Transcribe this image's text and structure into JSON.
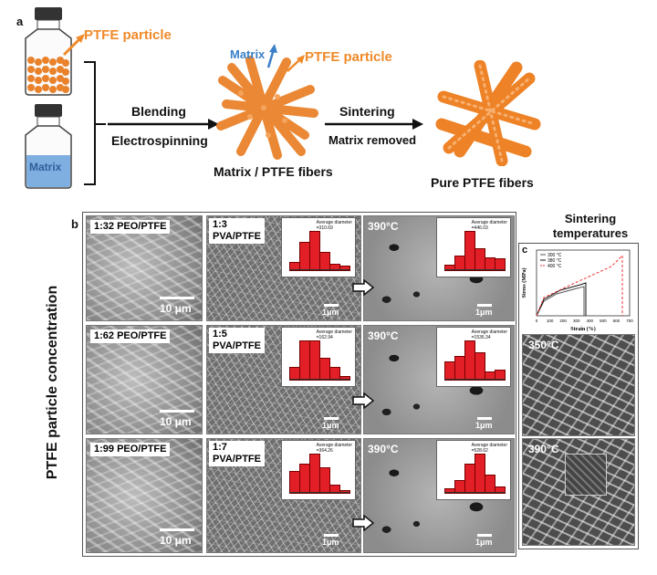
{
  "panel_a": {
    "label": "a",
    "ptfe_particle_left": "PTFE particle",
    "matrix_bottle": "Matrix",
    "blending": "Blending",
    "electrospinning": "Electrospinning",
    "matrix_arrow": "Matrix",
    "ptfe_particle_mid": "PTFE particle",
    "sintering": "Sintering",
    "matrix_removed": "Matrix removed",
    "caption_mid": "Matrix / PTFE fibers",
    "caption_right": "Pure PTFE fibers",
    "colors": {
      "orange": "#f08a2a",
      "blue": "#3a7fc8",
      "matrix_liquid": "#7faee0"
    }
  },
  "panel_b": {
    "label": "b",
    "side_label": "PTFE particle concentration",
    "rows": [
      {
        "peo": "1:32 PEO/PTFE",
        "scale_peo": "10 μm",
        "pva": "1:3\nPVA/PTFE",
        "temp": "390°C",
        "scale_pva": "1μm",
        "scale_sint": "1μm",
        "histo_pva": {
          "title": "Average diameter",
          "value": "=310.69",
          "bars": [
            0.18,
            0.72,
            1.0,
            0.45,
            0.15,
            0.1
          ]
        },
        "histo_sint": {
          "title": "Average diameter",
          "value": "=446.03",
          "bars": [
            0.12,
            0.35,
            1.0,
            0.55,
            0.3,
            0.28
          ]
        }
      },
      {
        "peo": "1:62 PEO/PTFE",
        "scale_peo": "10 μm",
        "pva": "1:5\nPVA/PTFE",
        "temp": "390°C",
        "scale_pva": "1μm",
        "scale_sint": "1μm",
        "histo_pva": {
          "title": "Average diameter",
          "value": "=162.94",
          "bars": [
            0.3,
            1.0,
            1.0,
            0.55,
            0.3,
            0.08
          ]
        },
        "histo_sint": {
          "title": "Average diameter",
          "value": "=1536.34",
          "bars": [
            0.45,
            0.6,
            1.0,
            0.7,
            0.2,
            0.25
          ]
        }
      },
      {
        "peo": "1:99 PEO/PTFE",
        "scale_peo": "10 μm",
        "pva": "1:7\nPVA/PTFE",
        "temp": "390°C",
        "scale_pva": "1μm",
        "scale_sint": "1μm",
        "histo_pva": {
          "title": "Average diameter",
          "value": "=364.26",
          "bars": [
            0.55,
            0.75,
            1.0,
            0.65,
            0.2,
            0.05
          ]
        },
        "histo_sint": {
          "title": "Average diameter",
          "value": "=528.62",
          "bars": [
            0.1,
            0.3,
            0.75,
            1.0,
            0.45,
            0.15
          ]
        }
      }
    ]
  },
  "panel_c": {
    "label": "c",
    "heading_line1": "Sintering",
    "heading_line2": "temperatures",
    "chart": {
      "xlabel": "Strain (%)",
      "ylabel": "Stress (MPa)",
      "legend": [
        "300 °C",
        "380 °C",
        "400 °C"
      ],
      "xticks": [
        "0",
        "100",
        "200",
        "300",
        "400",
        "500",
        "600",
        "700"
      ]
    },
    "img1_label": "350°C",
    "img2_label": "390°C"
  }
}
